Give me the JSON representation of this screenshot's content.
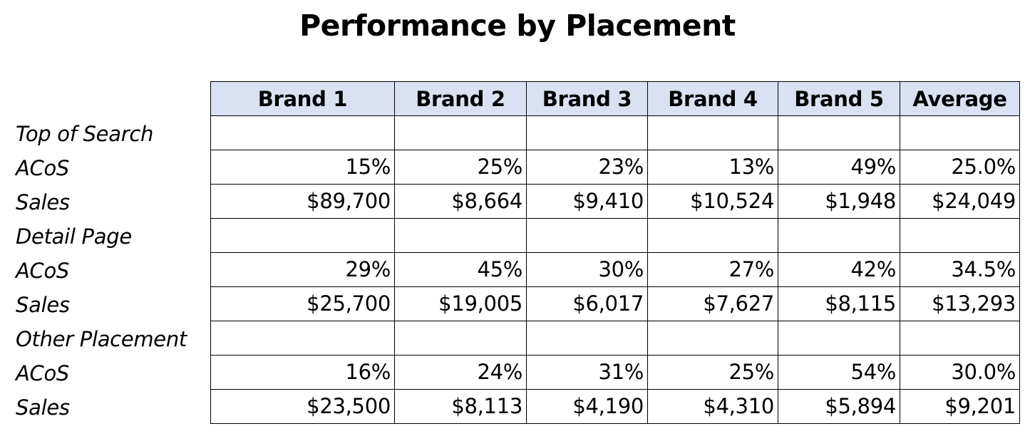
{
  "chart_data": {
    "type": "table",
    "title": "Performance by Placement",
    "columns": [
      "Brand 1",
      "Brand 2",
      "Brand 3",
      "Brand 4",
      "Brand 5",
      "Average"
    ],
    "rows": [
      {
        "label": "Top of Search",
        "cells": [
          "",
          "",
          "",
          "",
          "",
          ""
        ]
      },
      {
        "label": "ACoS",
        "cells": [
          "15%",
          "25%",
          "23%",
          "13%",
          "49%",
          "25.0%"
        ]
      },
      {
        "label": "Sales",
        "cells": [
          "$89,700",
          "$8,664",
          "$9,410",
          "$10,524",
          "$1,948",
          "$24,049"
        ]
      },
      {
        "label": "Detail Page",
        "cells": [
          "",
          "",
          "",
          "",
          "",
          ""
        ]
      },
      {
        "label": "ACoS",
        "cells": [
          "29%",
          "45%",
          "30%",
          "27%",
          "42%",
          "34.5%"
        ]
      },
      {
        "label": "Sales",
        "cells": [
          "$25,700",
          "$19,005",
          "$6,017",
          "$7,627",
          "$8,115",
          "$13,293"
        ]
      },
      {
        "label": "Other Placement",
        "cells": [
          "",
          "",
          "",
          "",
          "",
          ""
        ]
      },
      {
        "label": "ACoS",
        "cells": [
          "16%",
          "24%",
          "31%",
          "25%",
          "54%",
          "30.0%"
        ]
      },
      {
        "label": "Sales",
        "cells": [
          "$23,500",
          "$8,113",
          "$4,190",
          "$4,310",
          "$5,894",
          "$9,201"
        ]
      }
    ],
    "header_color": "#d9e1f2"
  }
}
